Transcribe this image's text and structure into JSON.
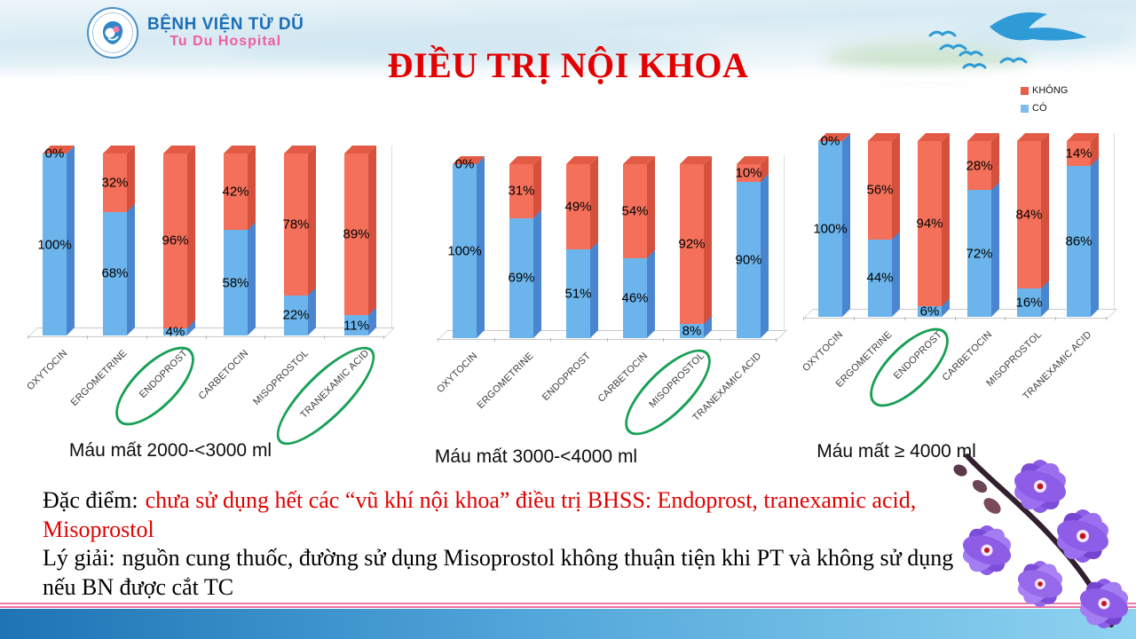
{
  "header": {
    "hospital_name": "BỆNH VIỆN TỪ DŨ",
    "hospital_subtitle": "Tu Du Hospital",
    "title": "ĐIỀU TRỊ NỘI KHOA"
  },
  "legend": {
    "items": [
      {
        "label": "KHÔNG",
        "color": "#e8604a"
      },
      {
        "label": "CÓ",
        "color": "#7fbce9"
      }
    ]
  },
  "chart_data": [
    {
      "type": "bar",
      "stacked": true,
      "title": "Máu mất 2000-<3000 ml",
      "categories": [
        "OXYTOCIN",
        "ERGOMETRINE",
        "ENDOPROST",
        "CARBETOCIN",
        "MISOPROSTOL",
        "TRANEXAMIC ACID"
      ],
      "series": [
        {
          "name": "CÓ",
          "color": "#6cb5ec",
          "values": [
            100,
            68,
            4,
            58,
            22,
            11
          ]
        },
        {
          "name": "KHÔNG",
          "color": "#f4705a",
          "values": [
            0,
            32,
            96,
            42,
            78,
            89
          ]
        }
      ],
      "circled": [
        "ENDOPROST",
        "TRANEXAMIC ACID"
      ],
      "ylim": [
        0,
        100
      ],
      "legend_position": "top-right",
      "grid": false
    },
    {
      "type": "bar",
      "stacked": true,
      "title": "Máu mất 3000-<4000 ml",
      "categories": [
        "OXYTOCIN",
        "ERGOMETRINE",
        "ENDOPROST",
        "CARBETOCIN",
        "MISOPROSTOL",
        "TRANEXAMIC ACID"
      ],
      "series": [
        {
          "name": "CÓ",
          "color": "#6cb5ec",
          "values": [
            100,
            69,
            51,
            46,
            8,
            90
          ]
        },
        {
          "name": "KHÔNG",
          "color": "#f4705a",
          "values": [
            0,
            31,
            49,
            54,
            92,
            10
          ]
        }
      ],
      "circled": [
        "MISOPROSTOL"
      ],
      "ylim": [
        0,
        100
      ],
      "grid": false
    },
    {
      "type": "bar",
      "stacked": true,
      "title": "Máu mất ≥ 4000 ml",
      "categories": [
        "OXYTOCIN",
        "ERGOMETRINE",
        "ENDOPROST",
        "CARBETOCIN",
        "MISOPROSTOL",
        "TRANEXAMIC ACID"
      ],
      "series": [
        {
          "name": "CÓ",
          "color": "#6cb5ec",
          "values": [
            100,
            44,
            6,
            72,
            16,
            86
          ]
        },
        {
          "name": "KHÔNG",
          "color": "#f4705a",
          "values": [
            0,
            56,
            94,
            28,
            84,
            14
          ]
        }
      ],
      "circled": [
        "ENDOPROST"
      ],
      "ylim": [
        0,
        100
      ],
      "grid": false
    }
  ],
  "notes": [
    {
      "label": "Đặc điểm:",
      "text": "chưa sử dụng hết các “vũ khí nội khoa” điều trị BHSS: Endoprost, tranexamic acid, Misoprostol",
      "text_color": "#e00000"
    },
    {
      "label": "Lý giải:",
      "text": "nguồn cung thuốc, đường sử dụng Misoprostol không thuận tiện khi PT và không sử dụng nếu BN được cắt TC",
      "text_color": "#000000"
    }
  ],
  "colors": {
    "co_front": "#6cb5ec",
    "co_side": "#4a86d0",
    "khong_front": "#f4705a",
    "khong_side": "#d5513e",
    "khong_top": "#e35b44",
    "circle_green": "#18a055",
    "title_red": "#e30000",
    "bottom_bar_blue": "#1e74b4",
    "pink_line": "#ef6fa4"
  }
}
